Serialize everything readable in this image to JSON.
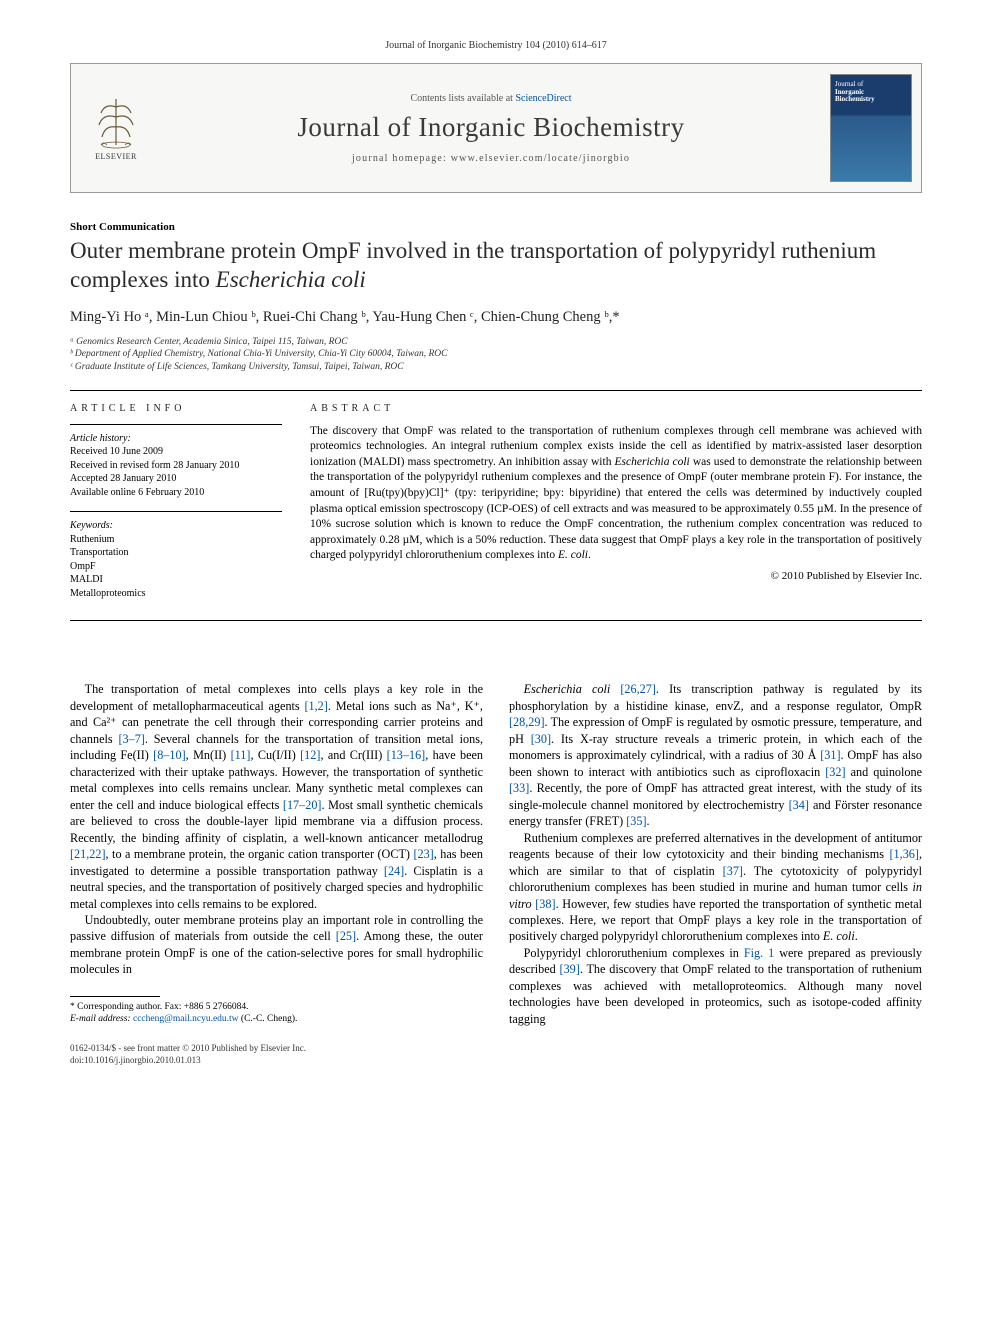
{
  "header": {
    "citation": "Journal of Inorganic Biochemistry 104 (2010) 614–617"
  },
  "banner": {
    "contents_line_prefix": "Contents lists available at ",
    "contents_link": "ScienceDirect",
    "journal_title": "Journal of Inorganic Biochemistry",
    "homepage_prefix": "journal homepage: ",
    "homepage_url": "www.elsevier.com/locate/jinorgbio",
    "publisher_label": "ELSEVIER",
    "cover_text_line1": "Journal of",
    "cover_text_line2": "Inorganic",
    "cover_text_line3": "Biochemistry"
  },
  "article": {
    "section_label": "Short Communication",
    "title_part1": "Outer membrane protein OmpF involved in the transportation of polypyridyl ruthenium complexes into ",
    "title_italic": "Escherichia coli",
    "authors_html": "Ming-Yi Ho ᵃ, Min-Lun Chiou ᵇ, Ruei-Chi Chang ᵇ, Yau-Hung Chen ᶜ, Chien-Chung Cheng ᵇ,*",
    "affiliations": [
      "ᵃ Genomics Research Center, Academia Sinica, Taipei 115, Taiwan, ROC",
      "ᵇ Department of Applied Chemistry, National Chia-Yi University, Chia-Yi City 60004, Taiwan, ROC",
      "ᶜ Graduate Institute of Life Sciences, Tamkang University, Tamsui, Taipei, Taiwan, ROC"
    ]
  },
  "info": {
    "head": "ARTICLE INFO",
    "history_label": "Article history:",
    "history": [
      "Received 10 June 2009",
      "Received in revised form 28 January 2010",
      "Accepted 28 January 2010",
      "Available online 6 February 2010"
    ],
    "keywords_label": "Keywords:",
    "keywords": [
      "Ruthenium",
      "Transportation",
      "OmpF",
      "MALDI",
      "Metalloproteomics"
    ]
  },
  "abstract": {
    "head": "ABSTRACT",
    "text": "The discovery that OmpF was related to the transportation of ruthenium complexes through cell membrane was achieved with proteomics technologies. An integral ruthenium complex exists inside the cell as identified by matrix-assisted laser desorption ionization (MALDI) mass spectrometry. An inhibition assay with Escherichia coli was used to demonstrate the relationship between the transportation of the polypyridyl ruthenium complexes and the presence of OmpF (outer membrane protein F). For instance, the amount of [Ru(tpy)(bpy)Cl]⁺ (tpy: teripyridine; bpy: bipyridine) that entered the cells was determined by inductively coupled plasma optical emission spectroscopy (ICP-OES) of cell extracts and was measured to be approximately 0.55 µM. In the presence of 10% sucrose solution which is known to reduce the OmpF concentration, the ruthenium complex concentration was reduced to approximately 0.28 µM, which is a 50% reduction. These data suggest that OmpF plays a key role in the transportation of positively charged polypyridyl chlororuthenium complexes into E. coli.",
    "copyright": "© 2010 Published by Elsevier Inc."
  },
  "body": {
    "left": [
      "The transportation of metal complexes into cells plays a key role in the development of metallopharmaceutical agents [1,2]. Metal ions such as Na⁺, K⁺, and Ca²⁺ can penetrate the cell through their corresponding carrier proteins and channels [3–7]. Several channels for the transportation of transition metal ions, including Fe(II) [8–10], Mn(II) [11], Cu(I/II) [12], and Cr(III) [13–16], have been characterized with their uptake pathways. However, the transportation of synthetic metal complexes into cells remains unclear. Many synthetic metal complexes can enter the cell and induce biological effects [17–20]. Most small synthetic chemicals are believed to cross the double-layer lipid membrane via a diffusion process. Recently, the binding affinity of cisplatin, a well-known anticancer metallodrug [21,22], to a membrane protein, the organic cation transporter (OCT) [23], has been investigated to determine a possible transportation pathway [24]. Cisplatin is a neutral species, and the transportation of positively charged species and hydrophilic metal complexes into cells remains to be explored.",
      "Undoubtedly, outer membrane proteins play an important role in controlling the passive diffusion of materials from outside the cell [25]. Among these, the outer membrane protein OmpF is one of the cation-selective pores for small hydrophilic molecules in"
    ],
    "right": [
      "Escherichia coli [26,27]. Its transcription pathway is regulated by its phosphorylation by a histidine kinase, envZ, and a response regulator, OmpR [28,29]. The expression of OmpF is regulated by osmotic pressure, temperature, and pH [30]. Its X-ray structure reveals a trimeric protein, in which each of the monomers is approximately cylindrical, with a radius of 30 Å [31]. OmpF has also been shown to interact with antibiotics such as ciprofloxacin [32] and quinolone [33]. Recently, the pore of OmpF has attracted great interest, with the study of its single-molecule channel monitored by electrochemistry [34] and Förster resonance energy transfer (FRET) [35].",
      "Ruthenium complexes are preferred alternatives in the development of antitumor reagents because of their low cytotoxicity and their binding mechanisms [1,36], which are similar to that of cisplatin [37]. The cytotoxicity of polypyridyl chlororuthenium complexes has been studied in murine and human tumor cells in vitro [38]. However, few studies have reported the transportation of synthetic metal complexes. Here, we report that OmpF plays a key role in the transportation of positively charged polypyridyl chlororuthenium complexes into E. coli.",
      "Polypyridyl chlororuthenium complexes in Fig. 1 were prepared as previously described [39]. The discovery that OmpF related to the transportation of ruthenium complexes was achieved with metalloproteomics. Although many novel technologies have been developed in proteomics, such as isotope-coded affinity tagging"
    ]
  },
  "footnote": {
    "corr": "* Corresponding author. Fax: +886 5 2766084.",
    "email_label": "E-mail address: ",
    "email": "cccheng@mail.ncyu.edu.tw",
    "email_suffix": " (C.-C. Cheng)."
  },
  "bottom": {
    "line1": "0162-0134/$ - see front matter © 2010 Published by Elsevier Inc.",
    "line2": "doi:10.1016/j.jinorgbio.2010.01.013"
  }
}
